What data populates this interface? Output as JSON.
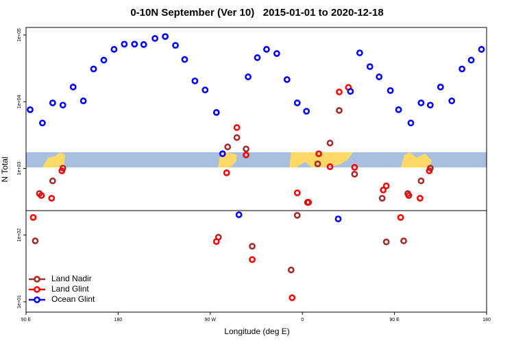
{
  "chart_data": {
    "type": "scatter",
    "title": "0-10N September (Ver 10)   2015-01-01 to 2020-12-18",
    "x_label": "Longitude (deg E)",
    "y_label": "N Total",
    "log_y": true,
    "legend": "bottom-left",
    "xlim": [
      90,
      540
    ],
    "ylim": [
      7,
      130000
    ],
    "xticks": [
      {
        "value": 90,
        "label": "90 E"
      },
      180,
      {
        "value": 270,
        "label": "90 W"
      },
      {
        "value": 360,
        "label": "0"
      },
      {
        "value": 450,
        "label": "90 E"
      },
      {
        "value": 540,
        "label": "180"
      }
    ],
    "yticks": [
      {
        "value": 10,
        "label": "1e+01"
      },
      {
        "value": 100,
        "label": "1e+02"
      },
      {
        "value": 1000,
        "label": "1e+03"
      },
      {
        "value": 10000,
        "label": "1e+04"
      },
      {
        "value": 100000,
        "label": "1e+05"
      }
    ],
    "series": [
      {
        "name": "Land Nadir",
        "color": "#a52a2a",
        "x": [
          99,
          103,
          116,
          126,
          278,
          287,
          296,
          305,
          311,
          349,
          355,
          365,
          375,
          387,
          396,
          411,
          438,
          442,
          459,
          463,
          476,
          485
        ],
        "values": [
          82,
          420,
          650,
          1010,
          93,
          2100,
          2900,
          1960,
          68,
          30,
          198,
          310,
          1170,
          2400,
          7400,
          820,
          357,
          79,
          82,
          420,
          650,
          1010
        ]
      },
      {
        "name": "Land Glint",
        "color": "#ff0000",
        "x": [
          97,
          105,
          115,
          125,
          276,
          286,
          296,
          305,
          311,
          350,
          355,
          366,
          376,
          387,
          396,
          405,
          411,
          439,
          442,
          456,
          464,
          475,
          484
        ],
        "values": [
          184,
          393,
          357,
          920,
          80,
          860,
          4100,
          1590,
          43,
          11.5,
          430,
          310,
          1660,
          1060,
          14000,
          16400,
          1040,
          474,
          547,
          184,
          393,
          357,
          920
        ]
      },
      {
        "name": "Ocean Glint",
        "color": "#0000ff",
        "x": [
          94,
          106,
          116,
          126,
          136,
          146,
          156,
          166,
          176,
          186,
          196,
          205,
          216,
          226,
          236,
          245,
          255,
          265,
          276,
          282,
          298,
          307,
          316,
          325,
          335,
          345,
          355,
          364,
          395,
          407,
          416,
          426,
          435,
          446,
          454,
          466,
          476,
          485,
          495,
          506,
          516,
          525,
          535
        ],
        "values": [
          7600,
          4800,
          9600,
          8900,
          16600,
          10300,
          31000,
          42000,
          61000,
          73000,
          73000,
          72000,
          89000,
          95000,
          70000,
          43000,
          20500,
          15000,
          6900,
          1660,
          202,
          23600,
          45800,
          61000,
          52800,
          21500,
          9600,
          7200,
          175,
          14300,
          54000,
          33600,
          23600,
          14700,
          7600,
          4800,
          9600,
          8900,
          16600,
          10300,
          31000,
          42000,
          61000
        ]
      }
    ]
  }
}
